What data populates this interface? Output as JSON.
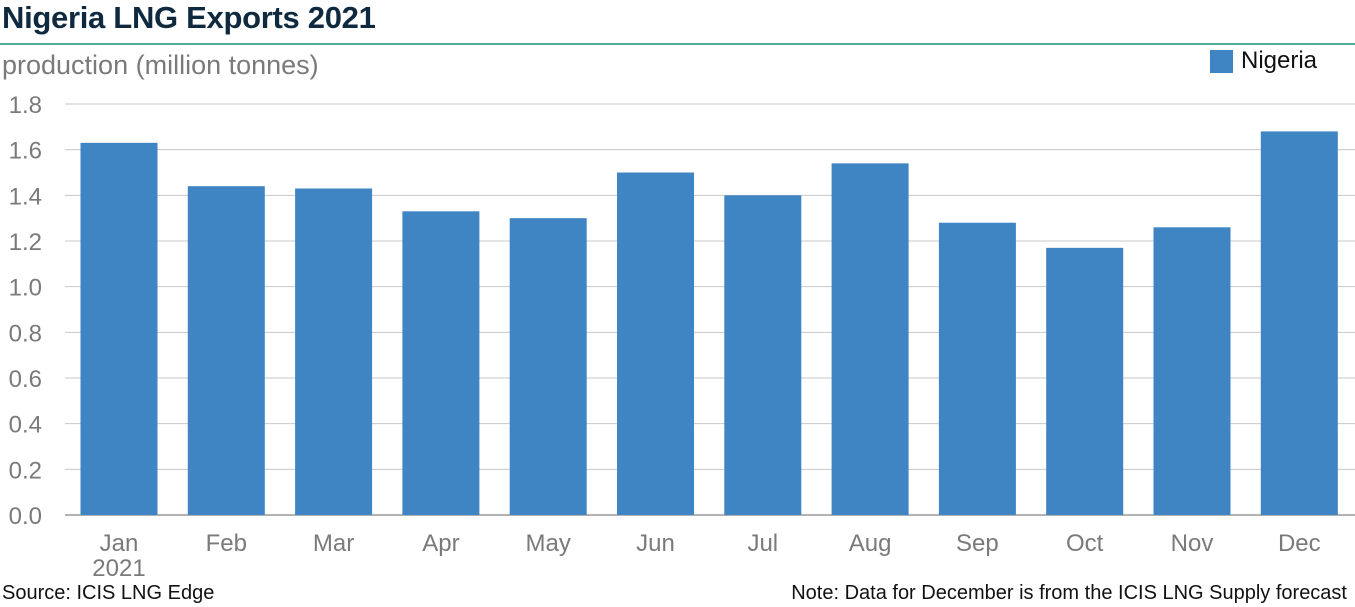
{
  "chart_data": {
    "type": "bar",
    "title": "Nigeria LNG Exports 2021",
    "ylabel": "production (million tonnes)",
    "xlabel": "",
    "categories": [
      "Jan",
      "Feb",
      "Mar",
      "Apr",
      "May",
      "Jun",
      "Jul",
      "Aug",
      "Sep",
      "Oct",
      "Nov",
      "Dec"
    ],
    "category_sublabels": [
      "2021",
      "",
      "",
      "",
      "",
      "",
      "",
      "",
      "",
      "",
      "",
      ""
    ],
    "series": [
      {
        "name": "Nigeria",
        "color": "#3f84c3",
        "values": [
          1.63,
          1.44,
          1.43,
          1.33,
          1.3,
          1.5,
          1.4,
          1.54,
          1.28,
          1.17,
          1.26,
          1.68
        ]
      }
    ],
    "ylim": [
      0,
      1.8
    ],
    "yticks": [
      "0.0",
      "0.2",
      "0.4",
      "0.6",
      "0.8",
      "1.0",
      "1.2",
      "1.4",
      "1.6",
      "1.8"
    ],
    "grid": true,
    "legend_position": "top-right"
  },
  "footer": {
    "source": "Source: ICIS LNG Edge",
    "note": "Note: Data for December is from the ICIS LNG Supply forecast"
  },
  "colors": {
    "bar": "#3f84c3",
    "title": "#0f2a3f",
    "rule": "#4fae9a",
    "grid": "#c8c8c8",
    "tick_label": "#7a7a7a"
  }
}
